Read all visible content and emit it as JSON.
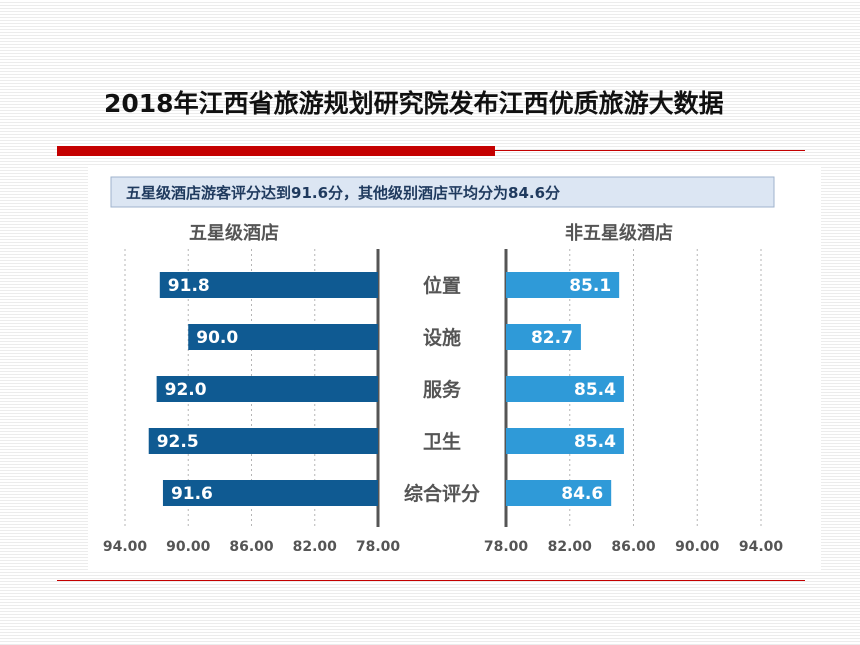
{
  "slide": {
    "title": "2018年江西省旅游规划研究院发布江西优质旅游大数据"
  },
  "colors": {
    "title_rule": "#c40000",
    "left_bars": "#0f5a92",
    "right_bars": "#2f9ad8"
  },
  "chart_data": {
    "type": "bar",
    "orientation": "horizontal",
    "title": "五星级酒店游客评分达到91.6分，其他级别酒店平均分为84.6分",
    "categories": [
      "位置",
      "设施",
      "服务",
      "卫生",
      "综合评分"
    ],
    "series": [
      {
        "name": "五星级酒店",
        "values": [
          91.8,
          90.0,
          92.0,
          92.5,
          91.6
        ],
        "labels": [
          "91.8",
          "90.0",
          "92.0",
          "92.5",
          "91.6"
        ]
      },
      {
        "name": "非五星级酒店",
        "values": [
          85.1,
          82.7,
          85.4,
          85.4,
          84.6
        ],
        "labels": [
          "85.1",
          "82.7",
          "85.4",
          "85.4",
          "84.6"
        ]
      }
    ],
    "left_axis": {
      "ticks": [
        "94.00",
        "90.00",
        "86.00",
        "82.00",
        "78.00"
      ],
      "range": [
        94,
        78
      ],
      "reversed": true
    },
    "right_axis": {
      "ticks": [
        "78.00",
        "82.00",
        "86.00",
        "90.00",
        "94.00"
      ],
      "range": [
        78,
        94
      ]
    },
    "grid": true,
    "legend": "none"
  }
}
